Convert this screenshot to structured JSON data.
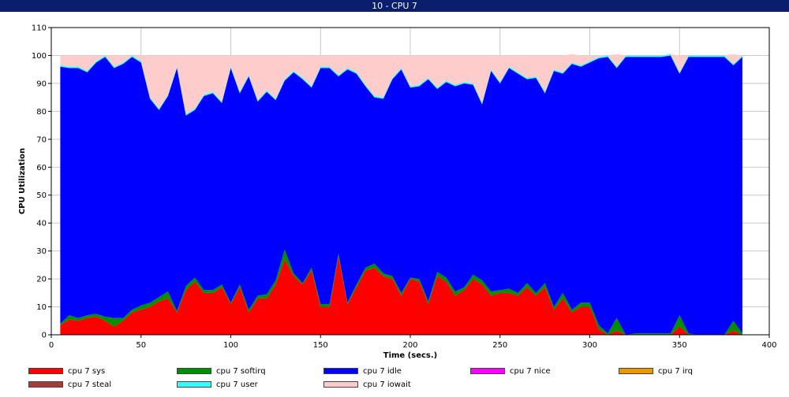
{
  "window": {
    "title": "10 - CPU 7"
  },
  "chart_data": {
    "type": "area",
    "stacked": true,
    "title": "",
    "xlabel": "Time (secs.)",
    "ylabel": "CPU Utilization",
    "xlim": [
      0,
      400
    ],
    "ylim": [
      0,
      110
    ],
    "xticks": [
      0,
      50,
      100,
      150,
      200,
      250,
      300,
      350,
      400
    ],
    "yticks": [
      0,
      10,
      20,
      30,
      40,
      50,
      60,
      70,
      80,
      90,
      100,
      110
    ],
    "grid": true,
    "legend_position": "bottom",
    "x": [
      5,
      10,
      15,
      20,
      25,
      30,
      35,
      40,
      45,
      50,
      55,
      60,
      65,
      70,
      75,
      80,
      85,
      90,
      95,
      100,
      105,
      110,
      115,
      120,
      125,
      130,
      135,
      140,
      145,
      150,
      155,
      160,
      165,
      170,
      175,
      180,
      185,
      190,
      195,
      200,
      205,
      210,
      215,
      220,
      225,
      230,
      235,
      240,
      245,
      250,
      255,
      260,
      265,
      270,
      275,
      280,
      285,
      290,
      295,
      300,
      305,
      310,
      315,
      320,
      325,
      330,
      335,
      340,
      345,
      350,
      355,
      360,
      365,
      370,
      375,
      380,
      385
    ],
    "series": [
      {
        "name": "cpu 7 sys",
        "color": "#ff0000",
        "values": [
          3.5,
          5.5,
          5,
          6,
          6.5,
          5,
          3,
          5,
          8,
          9,
          10,
          12,
          13,
          8,
          16,
          19,
          15,
          15,
          17,
          11,
          17,
          8,
          13,
          13,
          18,
          27,
          21,
          18,
          23,
          10,
          10,
          28,
          11,
          17,
          23,
          24,
          21,
          20,
          14,
          20,
          19,
          11,
          21,
          19,
          14,
          16,
          20,
          18,
          14,
          15,
          15,
          14,
          17,
          14,
          17,
          9,
          13,
          8,
          10,
          10,
          2,
          0,
          1.5,
          0,
          0,
          0,
          0,
          0,
          0,
          3,
          0,
          0,
          0,
          0,
          0,
          1.5,
          0
        ]
      },
      {
        "name": "cpu 7 softirq",
        "color": "#008f00",
        "values": [
          0.5,
          1.5,
          1,
          1,
          1,
          1.5,
          3,
          1,
          1,
          1.5,
          1.5,
          1.5,
          2.5,
          0.5,
          1.5,
          1.5,
          1,
          1,
          1,
          0.5,
          1,
          1,
          1,
          1.5,
          1.5,
          3.5,
          1,
          0.5,
          1,
          1,
          1,
          1,
          0.5,
          1,
          1,
          1.5,
          1,
          1,
          1,
          0.5,
          1,
          1,
          1.5,
          1.5,
          1.5,
          1,
          1.5,
          1.5,
          1.5,
          1,
          1.5,
          1,
          1.5,
          1,
          1.5,
          1,
          2,
          1,
          1.5,
          1.5,
          1.5,
          0.5,
          4.5,
          0,
          0.5,
          0.5,
          0.5,
          0.5,
          0.5,
          4,
          0.5,
          0,
          0,
          0,
          0,
          3.5,
          0.5
        ]
      },
      {
        "name": "cpu 7 idle",
        "color": "#0000ff",
        "values": [
          92,
          88.5,
          89.5,
          87,
          90,
          93,
          89.5,
          91,
          90.5,
          87,
          73,
          67,
          70,
          87,
          61,
          60,
          69.5,
          70.5,
          65,
          84,
          68.5,
          83.5,
          69.5,
          72.5,
          64.5,
          60.5,
          72,
          73,
          64.5,
          84.5,
          84.5,
          63.5,
          83.5,
          75.5,
          65,
          59.5,
          62.5,
          70.5,
          80,
          68,
          69,
          79.5,
          65.5,
          70,
          73.5,
          73,
          68,
          63,
          79,
          74,
          79,
          78.5,
          73,
          77,
          68,
          84.5,
          78.5,
          88,
          84.5,
          86,
          95.5,
          99,
          89.5,
          99.5,
          99,
          99,
          99,
          99,
          99.5,
          86.5,
          99,
          99.5,
          99.5,
          99.5,
          99.5,
          91.5,
          99
        ]
      },
      {
        "name": "cpu 7 nice",
        "color": "#ff00ff",
        "values": [
          0,
          0,
          0,
          0,
          0,
          0,
          0,
          0,
          0,
          0,
          0,
          0,
          0,
          0,
          0,
          0,
          0,
          0,
          0,
          0,
          0,
          0,
          0,
          0,
          0,
          0,
          0,
          0,
          0,
          0,
          0,
          0,
          0,
          0,
          0,
          0,
          0,
          0,
          0,
          0,
          0,
          0,
          0,
          0,
          0,
          0,
          0,
          0,
          0,
          0,
          0,
          0,
          0,
          0,
          0,
          0,
          0,
          0,
          0,
          0,
          0,
          0,
          0,
          0,
          0,
          0,
          0,
          0,
          0,
          0,
          0,
          0,
          0,
          0,
          0,
          0,
          0
        ]
      },
      {
        "name": "cpu 7 irq",
        "color": "#e69a00",
        "values": [
          0,
          0,
          0,
          0,
          0,
          0,
          0,
          0,
          0,
          0,
          0,
          0,
          0,
          0,
          0,
          0,
          0,
          0,
          0,
          0,
          0,
          0,
          0,
          0,
          0,
          0,
          0,
          0,
          0,
          0,
          0,
          0,
          0,
          0,
          0,
          0,
          0,
          0,
          0,
          0,
          0,
          0,
          0,
          0,
          0,
          0,
          0,
          0,
          0,
          0,
          0,
          0,
          0,
          0,
          0,
          0,
          0,
          0,
          0,
          0,
          0,
          0,
          0,
          0,
          0,
          0,
          0,
          0,
          0,
          0,
          0,
          0,
          0,
          0,
          0,
          0,
          0
        ]
      },
      {
        "name": "cpu 7 steal",
        "color": "#a83c3c",
        "values": [
          0,
          0,
          0,
          0,
          0,
          0,
          0,
          0,
          0,
          0,
          0,
          0,
          0,
          0,
          0,
          0,
          0,
          0,
          0,
          0,
          0,
          0,
          0,
          0,
          0,
          0,
          0,
          0,
          0,
          0,
          0,
          0,
          0,
          0,
          0,
          0,
          0,
          0,
          0,
          0,
          0,
          0,
          0,
          0,
          0,
          0,
          0,
          0,
          0,
          0,
          0,
          0,
          0,
          0,
          0,
          0,
          0,
          0,
          0,
          0,
          0,
          0,
          0,
          0,
          0,
          0,
          0,
          0,
          0,
          0,
          0,
          0,
          0,
          0,
          0,
          0,
          0
        ]
      },
      {
        "name": "cpu 7 user",
        "color": "#33ffff",
        "values": [
          0.5,
          0.5,
          0.5,
          0.5,
          0.5,
          0.5,
          0.5,
          0.5,
          0.5,
          0.5,
          0.5,
          0.5,
          0.5,
          0.5,
          0.5,
          0.5,
          0.5,
          0.5,
          0.5,
          0.5,
          0.5,
          0.5,
          0.5,
          0.5,
          0.5,
          0.5,
          0.5,
          0.5,
          0.5,
          0.5,
          0.5,
          0.5,
          0.5,
          0.5,
          0.5,
          0.5,
          0.5,
          0.5,
          0.5,
          0.5,
          0.5,
          0.5,
          0.5,
          0.5,
          0.5,
          0.5,
          0.5,
          0.5,
          0.5,
          0.5,
          0.5,
          0.5,
          0.5,
          0.5,
          0.5,
          0.5,
          0.5,
          0.5,
          0.5,
          0.5,
          0.5,
          0.5,
          0.5,
          0.5,
          0.5,
          0.5,
          0.5,
          0.5,
          0.5,
          0.5,
          0.5,
          0.5,
          0.5,
          0.5,
          0.5,
          0.5,
          0.5
        ]
      },
      {
        "name": "cpu 7 iowait",
        "color": "#ffcccc",
        "values": [
          3.5,
          4,
          4,
          5.5,
          2,
          0,
          4,
          2.5,
          0,
          2,
          15,
          19,
          14,
          4,
          21,
          19,
          14,
          13,
          16.5,
          4,
          13,
          7,
          16,
          12.5,
          15.5,
          8.5,
          5.5,
          8,
          11,
          4,
          4,
          7,
          4.5,
          6,
          10.5,
          14.5,
          15,
          8,
          4.5,
          11,
          10.5,
          8,
          11.5,
          9,
          10.5,
          9.5,
          10,
          17,
          5,
          9.5,
          4,
          6,
          8,
          7.5,
          13,
          5,
          6,
          3,
          3.5,
          2,
          0.5,
          0,
          4.5,
          0,
          0,
          0,
          0,
          0,
          0,
          6,
          0,
          0,
          0,
          0,
          0,
          3.5,
          0
        ]
      }
    ]
  }
}
